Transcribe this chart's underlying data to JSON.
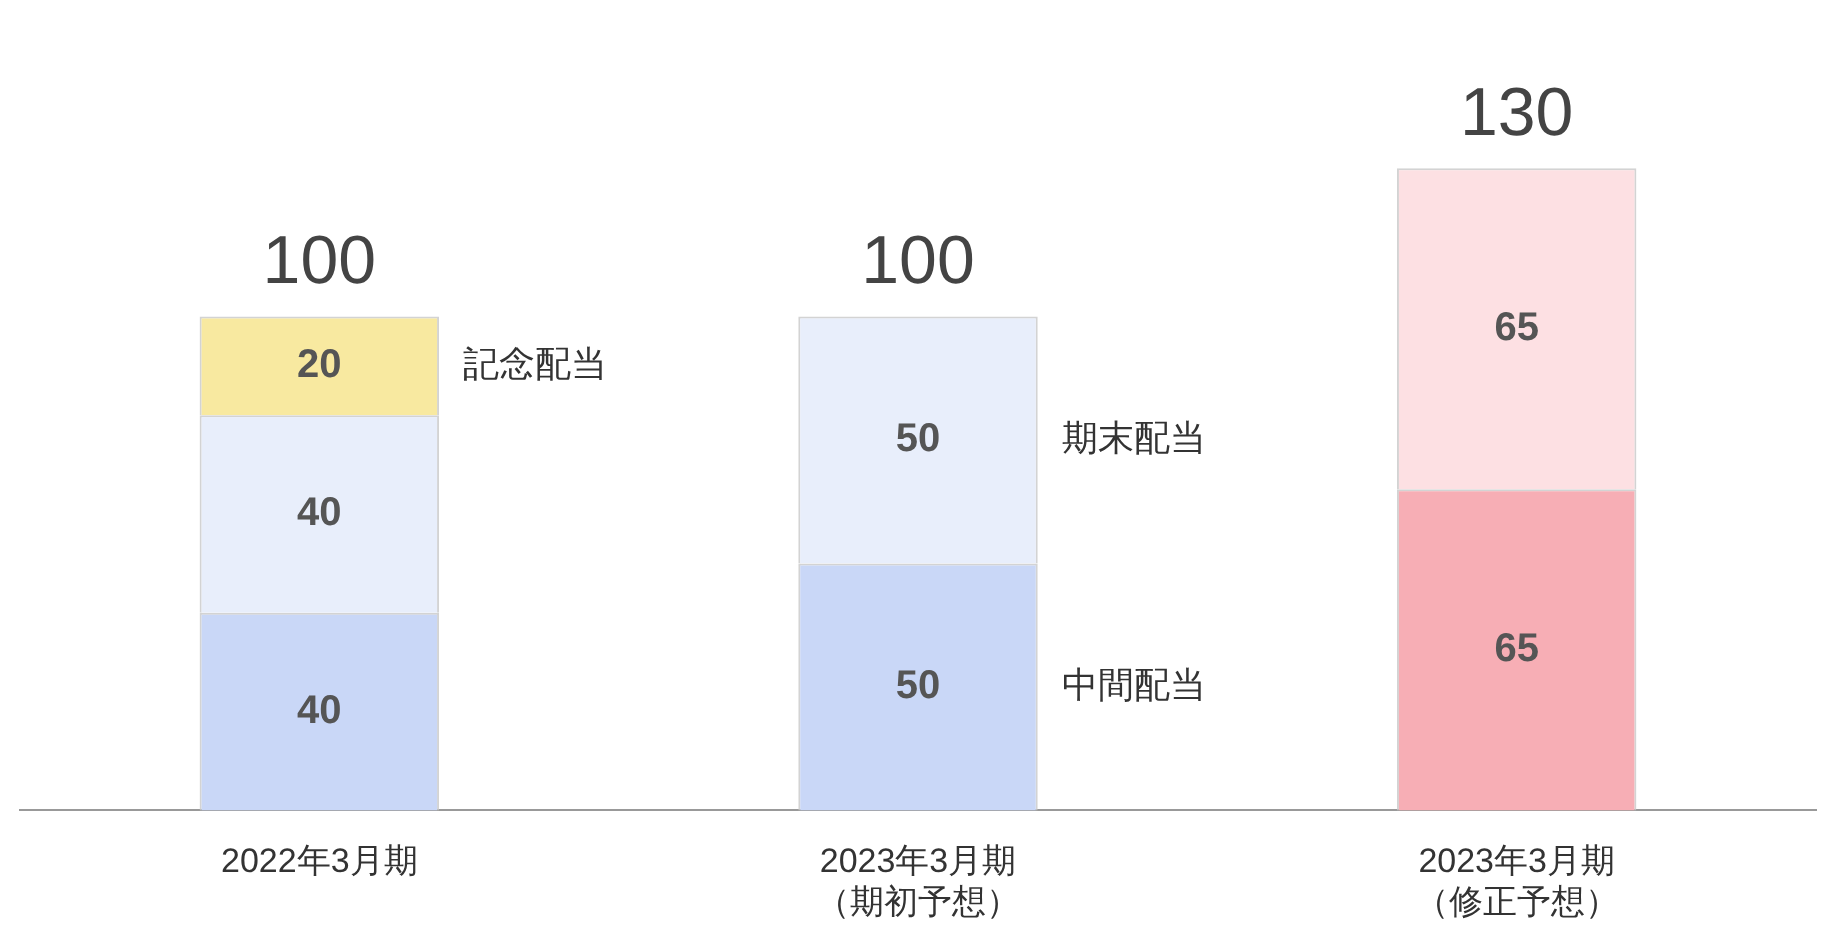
{
  "chart_data": {
    "type": "bar",
    "stacked": true,
    "categories": [
      "2022年3月期",
      "2023年3月期（期初予想）",
      "2023年3月期（修正予想）"
    ],
    "series": [
      {
        "name": "中間配当",
        "colors": [
          "#c9d7f7",
          "#c9d7f7",
          "#f7aeb5"
        ],
        "values": [
          40,
          50,
          65
        ]
      },
      {
        "name": "期末配当",
        "colors": [
          "#e8eefb",
          "#e8eefb",
          "#fde0e3"
        ],
        "values": [
          40,
          50,
          65
        ]
      },
      {
        "name": "記念配当",
        "colors": [
          "#f8e9a0",
          null,
          null
        ],
        "values": [
          20,
          null,
          null
        ]
      }
    ],
    "totals": [
      "100",
      "100",
      "130"
    ],
    "data_labels": true,
    "grid": false,
    "legend": false
  }
}
